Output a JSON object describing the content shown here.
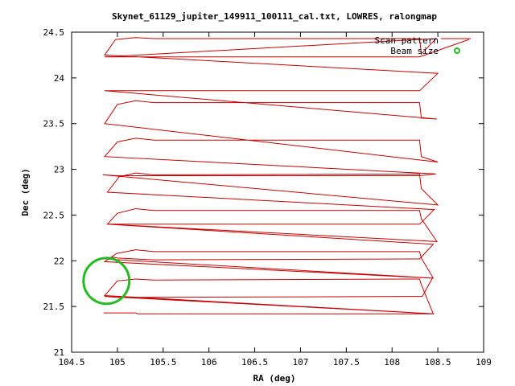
{
  "chart_data": {
    "type": "line",
    "title": "Skynet_61129_jupiter_149911_100111_cal.txt, LOWRES, ralongmap",
    "xlabel": "RA (deg)",
    "ylabel": "Dec (deg)",
    "xlim": [
      104.5,
      109
    ],
    "ylim": [
      21,
      24.5
    ],
    "x_ticks": [
      "104.5",
      "105",
      "105.5",
      "106",
      "106.5",
      "107",
      "107.5",
      "108",
      "108.5",
      "109"
    ],
    "y_ticks": [
      "21",
      "21.5",
      "22",
      "22.5",
      "23",
      "23.5",
      "24",
      "24.5"
    ],
    "grid": false,
    "legend_position": "top-right",
    "series": [
      {
        "name": "Scan pattern",
        "color": "#cc0000",
        "x": [
          104.85,
          105.2,
          105.22,
          108.46,
          104.86,
          105.0,
          105.2,
          105.4,
          108.3,
          108.32,
          108.45,
          104.86,
          105.0,
          105.2,
          108.33,
          108.44,
          104.86,
          104.99,
          105.2,
          105.4,
          108.3,
          108.32,
          108.45,
          104.86,
          104.95,
          105.0,
          105.2,
          105.4,
          108.3,
          108.45,
          104.89,
          105.0,
          105.2,
          105.4,
          108.3,
          108.32,
          108.49,
          104.89,
          105.0,
          105.2,
          105.4,
          108.3,
          108.46,
          104.89,
          105.02,
          105.2,
          105.4,
          108.3,
          108.32,
          108.5,
          104.84,
          105.0,
          105.2,
          105.4,
          108.3,
          108.48,
          104.86,
          105.0,
          105.2,
          105.4,
          108.3,
          108.32,
          108.5,
          104.86,
          105.0,
          105.2,
          105.4,
          108.3,
          108.32,
          108.49,
          104.86,
          105.0,
          105.2,
          105.4,
          108.3,
          108.5,
          104.86,
          104.98,
          105.2,
          105.4,
          108.3,
          108.32,
          108.48,
          104.86,
          105.0,
          105.2,
          105.4,
          108.3,
          108.84
        ],
        "y": [
          21.43,
          21.43,
          21.42,
          21.42,
          21.62,
          21.78,
          21.8,
          21.79,
          21.8,
          21.74,
          21.42,
          21.61,
          21.6,
          21.6,
          21.61,
          21.81,
          21.99,
          22.08,
          22.12,
          22.1,
          22.1,
          22.03,
          21.81,
          22.02,
          22.04,
          22.03,
          22.02,
          22.01,
          22.02,
          22.18,
          22.4,
          22.52,
          22.57,
          22.55,
          22.55,
          22.46,
          22.21,
          22.4,
          22.4,
          22.4,
          22.4,
          22.4,
          22.56,
          22.75,
          22.92,
          22.96,
          22.94,
          22.95,
          22.79,
          22.61,
          22.94,
          22.93,
          22.93,
          22.93,
          22.93,
          22.95,
          23.14,
          23.3,
          23.34,
          23.32,
          23.32,
          23.14,
          23.08,
          23.5,
          23.71,
          23.75,
          23.73,
          23.73,
          23.56,
          23.55,
          23.86,
          23.86,
          23.86,
          23.86,
          23.86,
          24.05,
          24.25,
          24.42,
          24.44,
          24.43,
          24.43,
          24.26,
          24.43,
          24.23,
          24.23,
          24.23,
          24.23,
          24.23,
          24.42
        ]
      },
      {
        "name": "Beam size",
        "color": "#22bb22",
        "center": [
          104.88,
          21.78
        ],
        "radius": 0.25
      }
    ]
  }
}
